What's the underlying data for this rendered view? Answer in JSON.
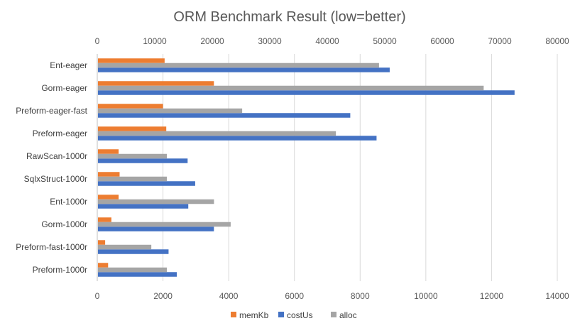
{
  "chart_data": {
    "type": "bar",
    "orientation": "horizontal",
    "title": "ORM Benchmark Result (low=better)",
    "categories": [
      "Ent-eager",
      "Gorm-eager",
      "Preform-eager-fast",
      "Preform-eager",
      "RawScan-1000r",
      "SqlxStruct-1000r",
      "Ent-1000r",
      "Gorm-1000r",
      "Preform-fast-1000r",
      "Preform-1000r"
    ],
    "series": [
      {
        "name": "memKb",
        "axis": "bottom",
        "color": "#ED7D31",
        "values": [
          2050,
          3550,
          2000,
          2100,
          650,
          680,
          650,
          430,
          240,
          330
        ]
      },
      {
        "name": "costUs",
        "axis": "bottom",
        "color": "#4472C4",
        "values": [
          8900,
          12700,
          7700,
          8500,
          2750,
          2980,
          2770,
          3550,
          2170,
          2420
        ]
      },
      {
        "name": "alloc",
        "axis": "top",
        "color": "#A5A5A5",
        "values": [
          49000,
          67200,
          25200,
          41500,
          12100,
          12100,
          20300,
          23200,
          9400,
          12100
        ]
      }
    ],
    "x_bottom": {
      "min": 0,
      "max": 14000,
      "ticks": [
        0,
        2000,
        4000,
        6000,
        8000,
        10000,
        12000,
        14000
      ]
    },
    "x_top": {
      "min": 0,
      "max": 80000,
      "ticks": [
        0,
        10000,
        20000,
        30000,
        40000,
        50000,
        60000,
        70000,
        80000
      ]
    },
    "grid": true,
    "legend_position": "bottom"
  }
}
